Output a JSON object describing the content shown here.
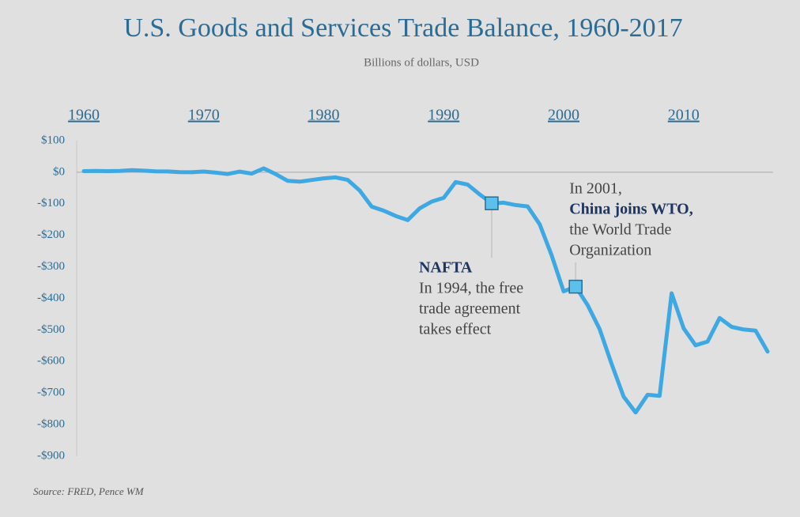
{
  "chart_data": {
    "type": "line",
    "title": "U.S. Goods and Services Trade Balance, 1960-2017",
    "subtitle": "Billions of dollars, USD",
    "source": "Source: FRED, Pence WM",
    "color": "#3ea8e2",
    "x": [
      1960,
      1961,
      1962,
      1963,
      1964,
      1965,
      1966,
      1967,
      1968,
      1969,
      1970,
      1971,
      1972,
      1973,
      1974,
      1975,
      1976,
      1977,
      1978,
      1979,
      1980,
      1981,
      1982,
      1983,
      1984,
      1985,
      1986,
      1987,
      1988,
      1989,
      1990,
      1991,
      1992,
      1993,
      1994,
      1995,
      1996,
      1997,
      1998,
      1999,
      2000,
      2001,
      2002,
      2003,
      2004,
      2005,
      2006,
      2007,
      2008,
      2009,
      2010,
      2011,
      2012,
      2013,
      2014,
      2015,
      2016,
      2017
    ],
    "values": [
      3.5,
      4.2,
      3.4,
      4.2,
      6.8,
      4.9,
      2.9,
      2.6,
      0.3,
      0.1,
      2.3,
      -1.3,
      -5.4,
      1.9,
      -4.3,
      12.4,
      -6.1,
      -27.2,
      -29.8,
      -24.6,
      -19.4,
      -16.2,
      -24.2,
      -57.8,
      -109.1,
      -121.9,
      -138.5,
      -151.7,
      -114.6,
      -93.1,
      -80.9,
      -31.1,
      -39.2,
      -70.3,
      -98.5,
      -96.4,
      -104.1,
      -108.3,
      -164.9,
      -263.2,
      -377.6,
      -362.7,
      -421.2,
      -496.9,
      -607.8,
      -711.6,
      -761.7,
      -705.4,
      -708.7,
      -383.8,
      -494.7,
      -548.6,
      -536.8,
      -461.9,
      -490.3,
      -498.5,
      -502.0,
      -568.4
    ],
    "xlim": [
      1960,
      2017
    ],
    "xticks": [
      1960,
      1970,
      1980,
      1990,
      2000,
      2010
    ],
    "ylim": [
      -900,
      100
    ],
    "yticks": [
      {
        "value": 100,
        "label": "$100"
      },
      {
        "value": 0,
        "label": "$0"
      },
      {
        "value": -100,
        "label": "-$100"
      },
      {
        "value": -200,
        "label": "-$200"
      },
      {
        "value": -300,
        "label": "-$300"
      },
      {
        "value": -400,
        "label": "-$400"
      },
      {
        "value": -500,
        "label": "-$500"
      },
      {
        "value": -600,
        "label": "-$600"
      },
      {
        "value": -700,
        "label": "-$700"
      },
      {
        "value": -800,
        "label": "-$800"
      },
      {
        "value": -900,
        "label": "-$900"
      }
    ],
    "annotations": [
      {
        "x": 1994,
        "title": "NAFTA",
        "text": [
          "In 1994, the free",
          "trade agreement",
          "takes effect"
        ]
      },
      {
        "x": 2001,
        "lead": "In 2001,",
        "title": "China joins WTO,",
        "text": [
          "the World Trade",
          "Organization"
        ]
      }
    ]
  }
}
